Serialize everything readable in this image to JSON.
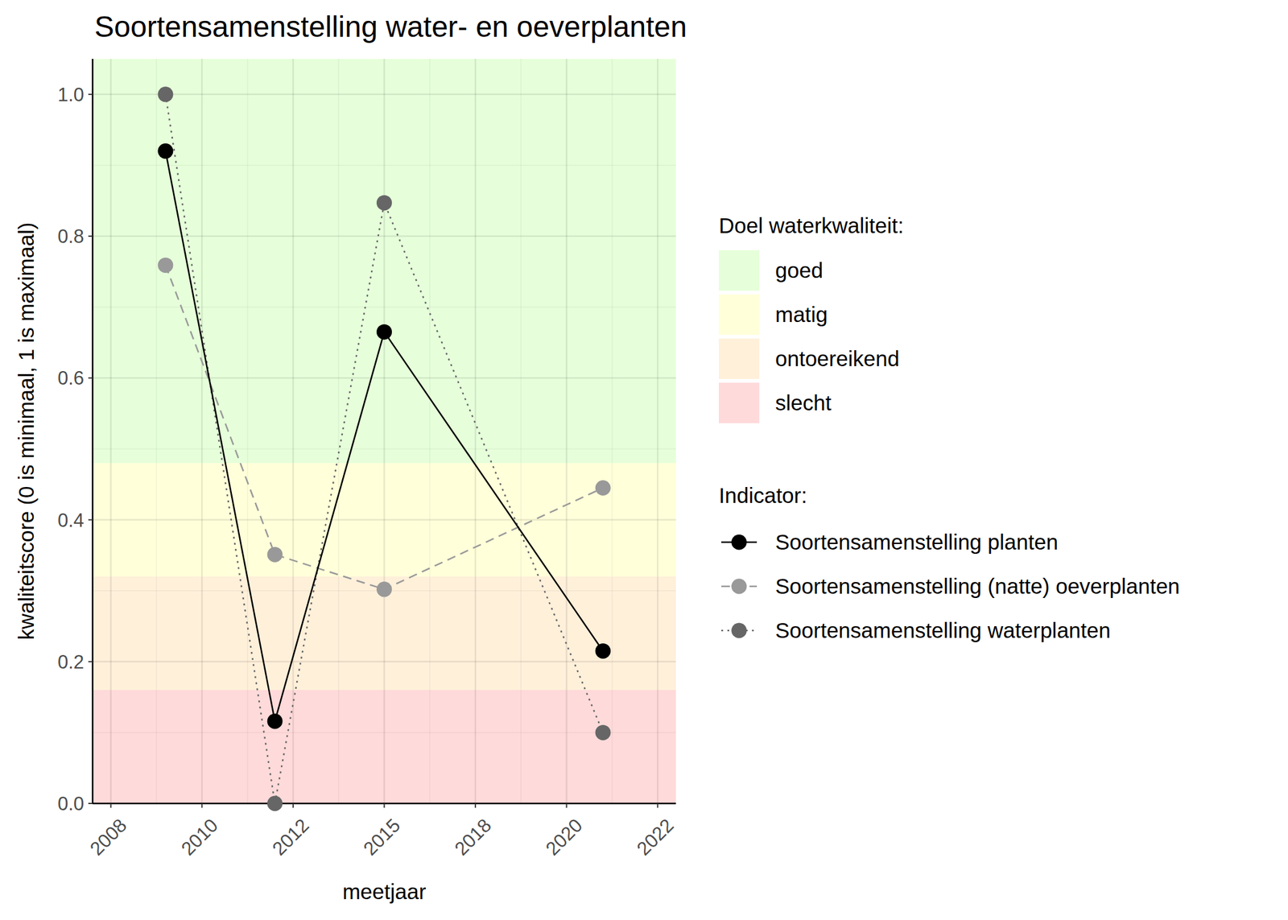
{
  "chart_data": {
    "type": "line",
    "title": "Soortensamenstelling water- en oeverplanten",
    "x_label": "meetjaar",
    "y_label": "kwaliteitscore (0 is minimaal, 1 is maximaal)",
    "x": [
      2009,
      2012,
      2015,
      2021
    ],
    "xlim": [
      2007,
      2023
    ],
    "xticks": [
      {
        "value": 2007.5,
        "label": "2008"
      },
      2010,
      {
        "value": 2012.5,
        "label": "2012"
      },
      2015,
      {
        "value": 2017.5,
        "label": "2018"
      },
      2020,
      {
        "value": 2022.5,
        "label": "2022"
      }
    ],
    "ylim": [
      0,
      1.05
    ],
    "yticks": [
      {
        "value": 0,
        "label": "0.0"
      },
      0.2,
      0.4,
      0.6,
      0.8,
      {
        "value": 1,
        "label": "1.0"
      }
    ],
    "grid": true,
    "legend": "right",
    "bands_title": "Doel waterkwaliteit:",
    "bands": [
      {
        "name": "goed",
        "from": 0.48,
        "to": 1.05,
        "color": "#e6ffda"
      },
      {
        "name": "matig",
        "from": 0.32,
        "to": 0.48,
        "color": "#ffffda"
      },
      {
        "name": "ontoereikend",
        "from": 0.16,
        "to": 0.32,
        "color": "#fff0da"
      },
      {
        "name": "slecht",
        "from": 0,
        "to": 0.16,
        "color": "#ffdada"
      }
    ],
    "legend_title": "Indicator:",
    "series": [
      {
        "name": "Soortensamenstelling planten",
        "color": "#000000",
        "line_style": "solid",
        "marker": "circle",
        "values": [
          0.92,
          0.116,
          0.665,
          0.215
        ]
      },
      {
        "name": "Soortensamenstelling (natte) oeverplanten",
        "color": "#999999",
        "line_style": "dashed",
        "marker": "circle",
        "values": [
          0.759,
          0.351,
          0.302,
          0.445
        ]
      },
      {
        "name": "Soortensamenstelling waterplanten",
        "color": "#666666",
        "line_style": "dotted",
        "marker": "circle",
        "values": [
          1.0,
          0.0,
          0.847,
          0.1
        ]
      }
    ]
  }
}
